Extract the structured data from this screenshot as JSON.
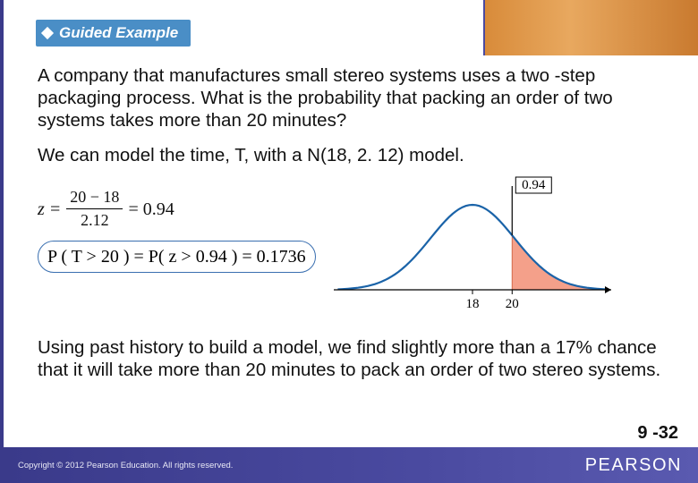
{
  "badge": {
    "label": "Guided Example"
  },
  "question": "A  company that manufactures small stereo systems uses a two -step packaging process. What is the probability that packing an order of two systems takes more than 20 minutes?",
  "model_line": "We can model the time, T, with a N(18, 2. 12) model.",
  "math": {
    "z_lhs": "z =",
    "z_num": "20 − 18",
    "z_den": "2.12",
    "z_rhs": "= 0.94",
    "p_expr": "P ( T > 20 ) = P( z > 0.94 ) = 0.1736"
  },
  "curve": {
    "type": "normal-density",
    "mean": 18,
    "x_marker": 20,
    "z_label": "0.94",
    "x_ticks": [
      18,
      20
    ],
    "curve_color": "#1a63a8",
    "shade_color": "#f4a08a",
    "shade_border": "#d46a4a",
    "axis_color": "#000000",
    "label_fontsize": 15,
    "box_border": "#000000",
    "background": "#ffffff",
    "xlim": [
      11,
      25
    ]
  },
  "conclusion": "Using past history to build a model, we find slightly more than a 17% chance that it will take more than 20 minutes to pack an order of two stereo systems.",
  "footer": {
    "copyright": "Copyright © 2012  Pearson Education. All rights reserved.",
    "brand": "PEARSON",
    "page": "9 -32"
  },
  "colors": {
    "footer_bg": "#3a3a8a",
    "badge_bg": "#4a8ec6",
    "accent_border": "#3a6fb0"
  }
}
